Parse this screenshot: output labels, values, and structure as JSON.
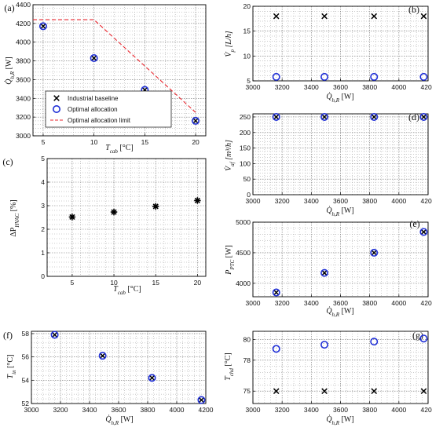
{
  "chart_data": [
    {
      "panel": "(a)",
      "type": "scatter",
      "xlabel": "T_cab [°C]",
      "ylabel": "Q̇_h,R [W]",
      "xlim": [
        4,
        21
      ],
      "ylim": [
        3000,
        4400
      ],
      "xticks": [
        5,
        10,
        15,
        20
      ],
      "yticks": [
        3000,
        3200,
        3400,
        3600,
        3800,
        4000,
        4200,
        4400
      ],
      "grid": true,
      "legend": {
        "placement": "bottom-left",
        "entries": [
          "Industrial baseline",
          "Optimal allocation",
          "Optimal allocation limit"
        ]
      },
      "series": [
        {
          "name": "Industrial baseline",
          "marker": "x",
          "color": "#000000",
          "x": [
            5,
            10,
            15,
            20
          ],
          "y": [
            4170,
            3830,
            3490,
            3160
          ]
        },
        {
          "name": "Optimal allocation",
          "marker": "o",
          "color": "#1f2fd6",
          "x": [
            5,
            10,
            15,
            20
          ],
          "y": [
            4170,
            3830,
            3490,
            3160
          ]
        },
        {
          "name": "Optimal allocation limit",
          "style": "dashed",
          "color": "#e8262e",
          "x": [
            4,
            10,
            20
          ],
          "y": [
            4240,
            4240,
            3250
          ]
        }
      ]
    },
    {
      "panel": "(b)",
      "type": "scatter",
      "xlabel": "Q̇_h,R [W]",
      "ylabel": "V̇_p [L/h]",
      "xlim": [
        3000,
        4200
      ],
      "ylim": [
        5,
        20
      ],
      "xticks": [
        3000,
        3200,
        3400,
        3600,
        3800,
        4000,
        4200
      ],
      "yticks": [
        5,
        10,
        15,
        20
      ],
      "grid": true,
      "series": [
        {
          "name": "Industrial baseline",
          "marker": "x",
          "color": "#000000",
          "x": [
            3160,
            3490,
            3830,
            4170
          ],
          "y": [
            18,
            18,
            18,
            18
          ]
        },
        {
          "name": "Optimal allocation",
          "marker": "o",
          "color": "#1f2fd6",
          "x": [
            3160,
            3490,
            3830,
            4170
          ],
          "y": [
            5.8,
            5.8,
            5.8,
            5.8
          ]
        }
      ]
    },
    {
      "panel": "(c)",
      "type": "scatter",
      "xlabel": "T_cab [°C]",
      "ylabel": "ΔP_HVAC [%]",
      "xlim": [
        2,
        21
      ],
      "ylim": [
        0,
        5
      ],
      "xticks": [
        5,
        10,
        15,
        20
      ],
      "yticks": [
        0,
        1,
        2,
        3,
        4,
        5
      ],
      "grid": true,
      "series": [
        {
          "marker": "star",
          "color": "#000000",
          "x": [
            5,
            10,
            15,
            20
          ],
          "y": [
            2.52,
            2.73,
            2.97,
            3.22
          ]
        }
      ]
    },
    {
      "panel": "(d)",
      "type": "scatter",
      "xlabel": "Q̇_h,R [W]",
      "ylabel": "V̇_af [m³/h]",
      "xlim": [
        3000,
        4200
      ],
      "ylim": [
        0,
        260
      ],
      "xticks": [
        3000,
        3200,
        3400,
        3600,
        3800,
        4000,
        4200
      ],
      "yticks": [
        0,
        50,
        100,
        150,
        200,
        250
      ],
      "grid": true,
      "series": [
        {
          "name": "Industrial baseline",
          "marker": "x",
          "color": "#000000",
          "x": [
            3160,
            3490,
            3830,
            4170
          ],
          "y": [
            250,
            250,
            250,
            250
          ]
        },
        {
          "name": "Optimal allocation",
          "marker": "o",
          "color": "#1f2fd6",
          "x": [
            3160,
            3490,
            3830,
            4170
          ],
          "y": [
            250,
            250,
            250,
            250
          ]
        }
      ]
    },
    {
      "panel": "(e)",
      "type": "scatter",
      "xlabel": "Q̇_h,R [W]",
      "ylabel": "P_PTC [W]",
      "xlim": [
        3000,
        4200
      ],
      "ylim": [
        3780,
        5000
      ],
      "xticks": [
        3000,
        3200,
        3400,
        3600,
        3800,
        4000,
        4200
      ],
      "yticks": [
        4000,
        4500,
        5000
      ],
      "grid": true,
      "series": [
        {
          "name": "Industrial baseline",
          "marker": "x",
          "color": "#000000",
          "x": [
            3160,
            3490,
            3830,
            4170
          ],
          "y": [
            3850,
            4170,
            4500,
            4840
          ]
        },
        {
          "name": "Optimal allocation",
          "marker": "o",
          "color": "#1f2fd6",
          "x": [
            3160,
            3490,
            3830,
            4170
          ],
          "y": [
            3850,
            4170,
            4500,
            4840
          ]
        }
      ]
    },
    {
      "panel": "(f)",
      "type": "scatter",
      "xlabel": "Q̇_h,R [W]",
      "ylabel": "T_in [°C]",
      "xlim": [
        3000,
        4200
      ],
      "ylim": [
        52,
        58.2
      ],
      "xticks": [
        3000,
        3200,
        3400,
        3600,
        3800,
        4000,
        4200
      ],
      "yticks": [
        52,
        54,
        56,
        58
      ],
      "grid": true,
      "series": [
        {
          "name": "Industrial baseline",
          "marker": "x",
          "color": "#000000",
          "x": [
            3160,
            3490,
            3830,
            4170
          ],
          "y": [
            57.9,
            56.1,
            54.2,
            52.3
          ]
        },
        {
          "name": "Optimal allocation",
          "marker": "o",
          "color": "#1f2fd6",
          "x": [
            3160,
            3490,
            3830,
            4170
          ],
          "y": [
            57.9,
            56.1,
            54.2,
            52.3
          ]
        }
      ]
    },
    {
      "panel": "(g)",
      "type": "scatter",
      "xlabel": "Q̇_h,R [W]",
      "ylabel": "T_chd [°C]",
      "xlim": [
        3000,
        4200
      ],
      "ylim": [
        73.8,
        80.8
      ],
      "xticks": [
        3000,
        3200,
        3400,
        3600,
        3800,
        4000,
        4200
      ],
      "yticks": [
        75,
        78,
        80
      ],
      "grid": true,
      "series": [
        {
          "name": "Industrial baseline",
          "marker": "x",
          "color": "#000000",
          "x": [
            3160,
            3490,
            3830,
            4170
          ],
          "y": [
            75,
            75,
            75,
            75
          ]
        },
        {
          "name": "Optimal allocation",
          "marker": "o",
          "color": "#1f2fd6",
          "x": [
            3160,
            3490,
            3830,
            4170
          ],
          "y": [
            79.1,
            79.5,
            79.8,
            80.1
          ]
        }
      ]
    }
  ]
}
